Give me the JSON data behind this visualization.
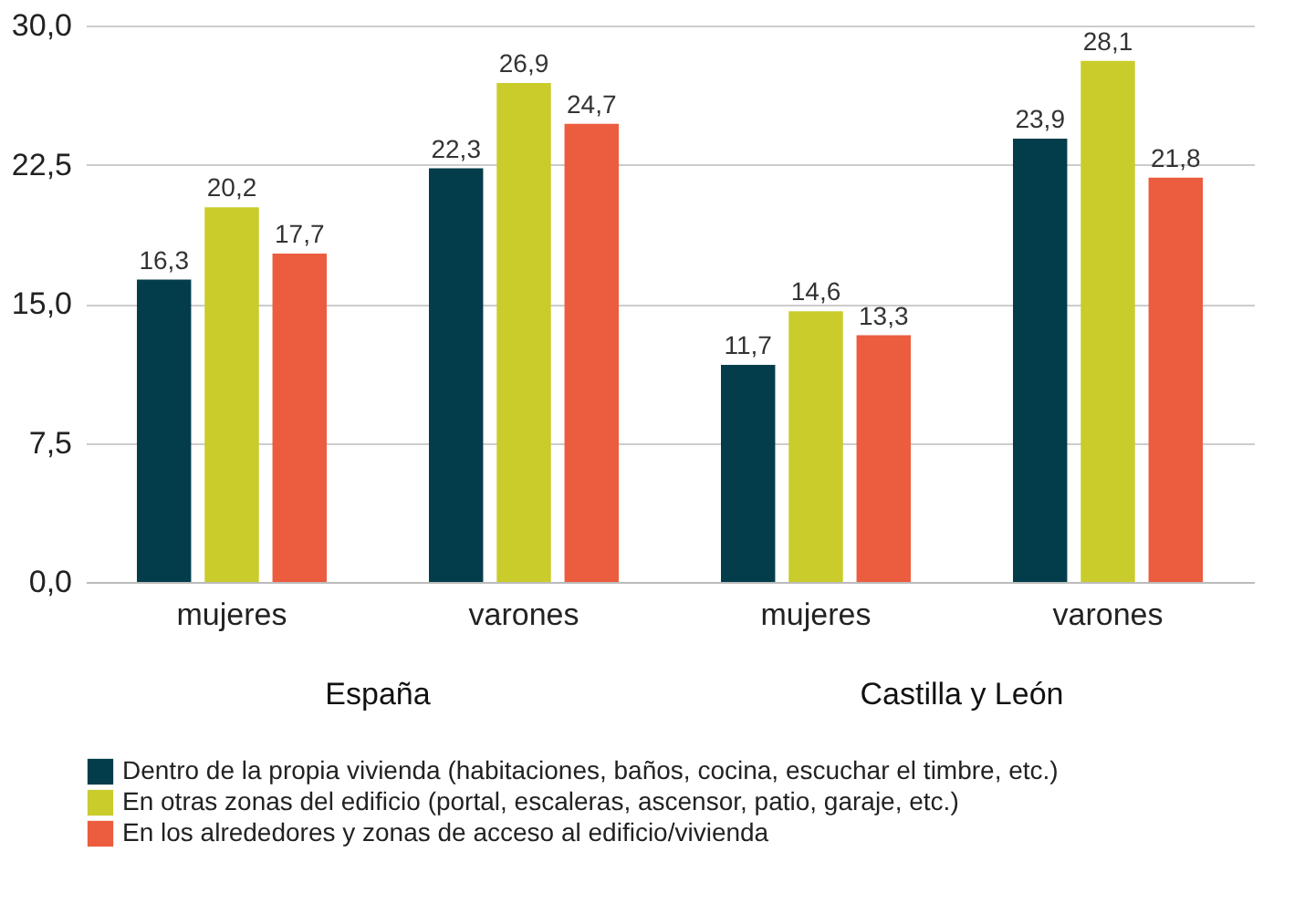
{
  "chart_data": {
    "type": "bar",
    "categories": [
      "mujeres",
      "varones",
      "mujeres",
      "varones"
    ],
    "series": [
      {
        "name": "Dentro de la propia vivienda (habitaciones, baños, cocina, escuchar el timbre, etc.)",
        "color": "#033d4b",
        "values": [
          16.3,
          22.3,
          11.7,
          23.9
        ],
        "value_labels": [
          "16,3",
          "22,3",
          "11,7",
          "23,9"
        ]
      },
      {
        "name": "En otras zonas del edificio (portal, escaleras, ascensor, patio, garaje, etc.)",
        "color": "#c9cc2b",
        "values": [
          20.2,
          26.9,
          14.6,
          28.1
        ],
        "value_labels": [
          "20,2",
          "26,9",
          "14,6",
          "28,1"
        ]
      },
      {
        "name": "En los alrededores y zonas de acceso al edificio/vivienda",
        "color": "#ec5c3e",
        "values": [
          17.7,
          24.7,
          13.3,
          21.8
        ],
        "value_labels": [
          "17,7",
          "24,7",
          "13,3",
          "21,8"
        ]
      }
    ],
    "annotations": [
      "España",
      "Castilla y León"
    ],
    "ylim": [
      0,
      30
    ],
    "yticks": [
      {
        "value": 0,
        "label": "0,0"
      },
      {
        "value": 7.5,
        "label": "7,5"
      },
      {
        "value": 15,
        "label": "15,0"
      },
      {
        "value": 22.5,
        "label": "22,5"
      },
      {
        "value": 30,
        "label": "30,0"
      }
    ],
    "grid": "y",
    "legend": "bottom"
  }
}
